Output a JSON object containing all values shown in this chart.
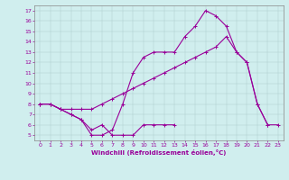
{
  "xlabel": "Windchill (Refroidissement éolien,°C)",
  "bg_color": "#d0eeee",
  "line_color": "#990099",
  "xlim": [
    -0.5,
    23.5
  ],
  "ylim": [
    4.5,
    17.5
  ],
  "xticks": [
    0,
    1,
    2,
    3,
    4,
    5,
    6,
    7,
    8,
    9,
    10,
    11,
    12,
    13,
    14,
    15,
    16,
    17,
    18,
    19,
    20,
    21,
    22,
    23
  ],
  "yticks": [
    5,
    6,
    7,
    8,
    9,
    10,
    11,
    12,
    13,
    14,
    15,
    16,
    17
  ],
  "line1_x": [
    0,
    1,
    2,
    3,
    4,
    5,
    6,
    7,
    8,
    9,
    10,
    11,
    12,
    13,
    14,
    15,
    16,
    17,
    18,
    19,
    20,
    21,
    22,
    23
  ],
  "line1_y": [
    8,
    8,
    7.5,
    7,
    6.5,
    5,
    5,
    5.5,
    8,
    11,
    12.5,
    13,
    13,
    13,
    14.5,
    15.5,
    17,
    16.5,
    15.5,
    13,
    12,
    8,
    6,
    6
  ],
  "line2_x": [
    0,
    1,
    2,
    3,
    4,
    5,
    6,
    7,
    8,
    9,
    10,
    11,
    12,
    13
  ],
  "line2_y": [
    8,
    8,
    7.5,
    7,
    6.5,
    5.5,
    6,
    5,
    5,
    5,
    6,
    6,
    6,
    6
  ],
  "line3_x": [
    0,
    1,
    2,
    3,
    4,
    5,
    6,
    7,
    8,
    9,
    10,
    11,
    12,
    13,
    14,
    15,
    16,
    17,
    18,
    19,
    20,
    21,
    22,
    23
  ],
  "line3_y": [
    8,
    8,
    7.5,
    7.5,
    7.5,
    7.5,
    8,
    8.5,
    9,
    9.5,
    10,
    10.5,
    11,
    11.5,
    12,
    12.5,
    13,
    13.5,
    14.5,
    13,
    12,
    8,
    6,
    null
  ]
}
